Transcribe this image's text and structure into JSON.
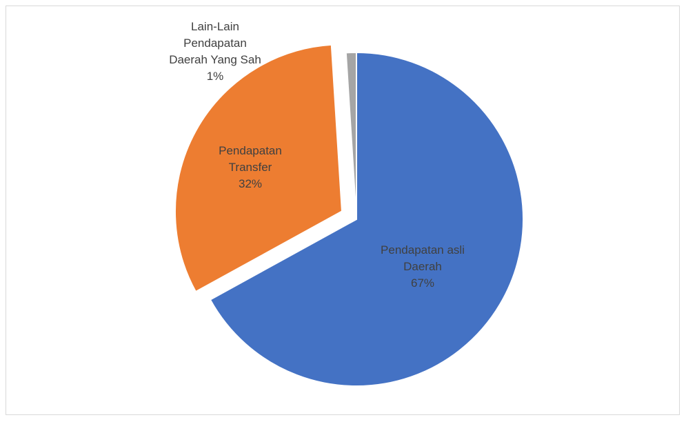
{
  "chart_data": {
    "type": "pie",
    "title": "",
    "slices": [
      {
        "category": "Pendapatan asli Daerah",
        "label_lines": [
          "Pendapatan asli",
          "Daerah"
        ],
        "value": 67,
        "percent_label": "67%",
        "color": "#4472c4",
        "exploded": false
      },
      {
        "category": "Pendapatan Transfer",
        "label_lines": [
          "Pendapatan",
          "Transfer"
        ],
        "value": 32,
        "percent_label": "32%",
        "color": "#ed7d31",
        "exploded": true
      },
      {
        "category": "Lain-Lain Pendapatan Daerah Yang Sah",
        "label_lines": [
          "Lain-Lain",
          "Pendapatan",
          "Daerah Yang Sah"
        ],
        "value": 1,
        "percent_label": "1%",
        "color": "#a5a5a5",
        "exploded": false
      }
    ],
    "start_angle": "12 o'clock",
    "direction": "clockwise",
    "legend": "none",
    "data_labels": "category and percent"
  }
}
